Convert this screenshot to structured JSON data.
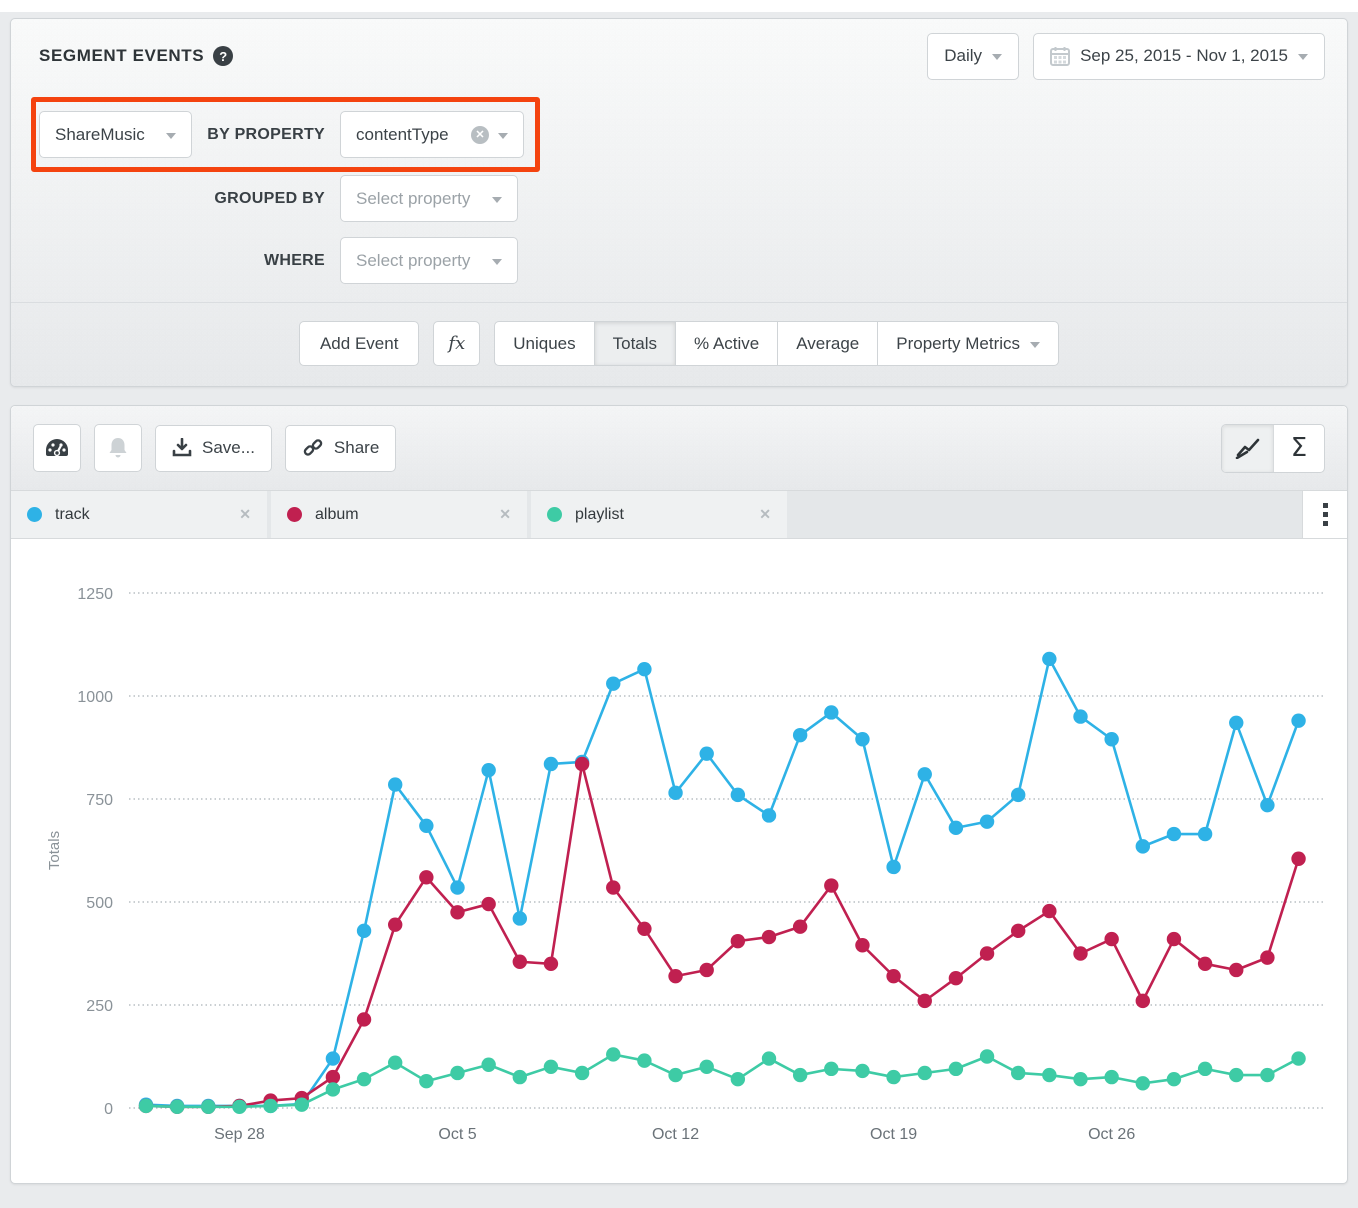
{
  "icons": {
    "help": "?",
    "sigma": "Σ",
    "close": "✕"
  },
  "header": {
    "title": "SEGMENT EVENTS",
    "granularity": "Daily",
    "date_range": "Sep 25, 2015 - Nov 1, 2015"
  },
  "query": {
    "event_value": "ShareMusic",
    "by_property_label": "BY PROPERTY",
    "by_property_value": "contentType",
    "grouped_by_label": "GROUPED BY",
    "grouped_by_placeholder": "Select property",
    "where_label": "WHERE",
    "where_placeholder": "Select property",
    "highlight_color": "#f4430f"
  },
  "actions": {
    "add_event": "Add Event",
    "formula": "fx",
    "metrics": [
      {
        "label": "Uniques",
        "selected": false
      },
      {
        "label": "Totals",
        "selected": true
      },
      {
        "label": "% Active",
        "selected": false
      },
      {
        "label": "Average",
        "selected": false
      },
      {
        "label": "Property Metrics",
        "selected": false,
        "has_dropdown": true
      }
    ]
  },
  "toolbar": {
    "save_label": "Save...",
    "share_label": "Share",
    "chart_type": [
      {
        "name": "line-chart",
        "selected": true
      },
      {
        "name": "sigma-summary",
        "selected": false
      }
    ]
  },
  "legend": {
    "items": [
      {
        "label": "track"
      },
      {
        "label": "album"
      },
      {
        "label": "playlist"
      }
    ]
  },
  "chart_data": {
    "type": "line",
    "title": "",
    "xlabel": "",
    "ylabel": "Totals",
    "ylim": [
      0,
      1250
    ],
    "yticks": [
      0,
      250,
      500,
      750,
      1000,
      1250
    ],
    "grid": "dotted-horizontal",
    "legend_position": "top-tabs",
    "x_tick_labels": [
      "Sep 28",
      "Oct 5",
      "Oct 12",
      "Oct 19",
      "Oct 26"
    ],
    "x_tick_day_index": [
      3,
      10,
      17,
      24,
      31
    ],
    "dates": [
      "Sep 25",
      "Sep 26",
      "Sep 27",
      "Sep 28",
      "Sep 29",
      "Sep 30",
      "Oct 1",
      "Oct 2",
      "Oct 3",
      "Oct 4",
      "Oct 5",
      "Oct 6",
      "Oct 7",
      "Oct 8",
      "Oct 9",
      "Oct 10",
      "Oct 11",
      "Oct 12",
      "Oct 13",
      "Oct 14",
      "Oct 15",
      "Oct 16",
      "Oct 17",
      "Oct 18",
      "Oct 19",
      "Oct 20",
      "Oct 21",
      "Oct 22",
      "Oct 23",
      "Oct 24",
      "Oct 25",
      "Oct 26",
      "Oct 27",
      "Oct 28",
      "Oct 29",
      "Oct 30",
      "Oct 31",
      "Nov 1"
    ],
    "series": [
      {
        "name": "track",
        "color": "#2eb2e6",
        "values": [
          8,
          5,
          5,
          5,
          5,
          10,
          120,
          430,
          785,
          685,
          535,
          820,
          460,
          835,
          840,
          1030,
          1065,
          765,
          860,
          760,
          710,
          905,
          960,
          895,
          585,
          810,
          680,
          695,
          760,
          1090,
          950,
          895,
          635,
          665,
          665,
          935,
          735,
          940
        ]
      },
      {
        "name": "album",
        "color": "#c02050",
        "values": [
          5,
          3,
          3,
          5,
          18,
          24,
          75,
          215,
          445,
          560,
          475,
          495,
          355,
          350,
          835,
          535,
          435,
          320,
          335,
          405,
          415,
          440,
          540,
          395,
          320,
          260,
          315,
          375,
          430,
          478,
          375,
          410,
          260,
          410,
          350,
          335,
          365,
          605
        ]
      },
      {
        "name": "playlist",
        "color": "#3ecba5",
        "values": [
          5,
          3,
          3,
          3,
          5,
          8,
          45,
          70,
          110,
          65,
          85,
          105,
          75,
          100,
          85,
          130,
          115,
          80,
          100,
          70,
          120,
          80,
          95,
          90,
          75,
          85,
          95,
          125,
          85,
          80,
          70,
          75,
          60,
          70,
          95,
          80,
          80,
          120
        ]
      }
    ]
  }
}
